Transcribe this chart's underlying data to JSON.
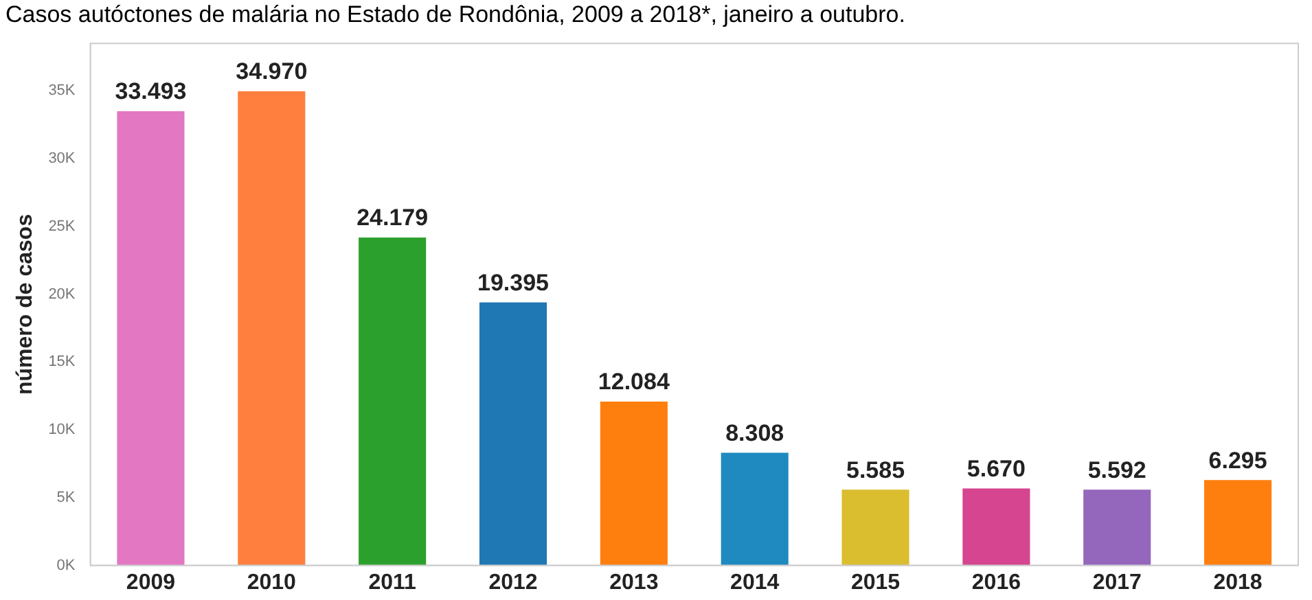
{
  "chart_data": {
    "type": "bar",
    "title": "Casos autóctones de malária no Estado de Rondônia, 2009 a 2018*, janeiro a outubro.",
    "ylabel": "número de casos",
    "categories": [
      "2009",
      "2010",
      "2011",
      "2012",
      "2013",
      "2014",
      "2015",
      "2016",
      "2017",
      "2018"
    ],
    "values": [
      33493,
      34970,
      24179,
      19395,
      12084,
      8308,
      5585,
      5670,
      5592,
      6295
    ],
    "value_labels": [
      "33.493",
      "34.970",
      "24.179",
      "19.395",
      "12.084",
      "8.308",
      "5.585",
      "5.670",
      "5.592",
      "6.295"
    ],
    "colors": [
      "#e377c2",
      "#ff7f3e",
      "#2ca02c",
      "#1f77b4",
      "#ff7f0e",
      "#1f8ac0",
      "#dbbd30",
      "#d6458f",
      "#9467bd",
      "#ff7f0e"
    ],
    "ylim": [
      0,
      38500
    ],
    "yticks": [
      {
        "value": 0,
        "label": "0K"
      },
      {
        "value": 5000,
        "label": "5K"
      },
      {
        "value": 10000,
        "label": "10K"
      },
      {
        "value": 15000,
        "label": "15K"
      },
      {
        "value": 20000,
        "label": "20K"
      },
      {
        "value": 25000,
        "label": "25K"
      },
      {
        "value": 30000,
        "label": "30K"
      },
      {
        "value": 35000,
        "label": "35K"
      }
    ],
    "grid": false,
    "legend": false
  }
}
